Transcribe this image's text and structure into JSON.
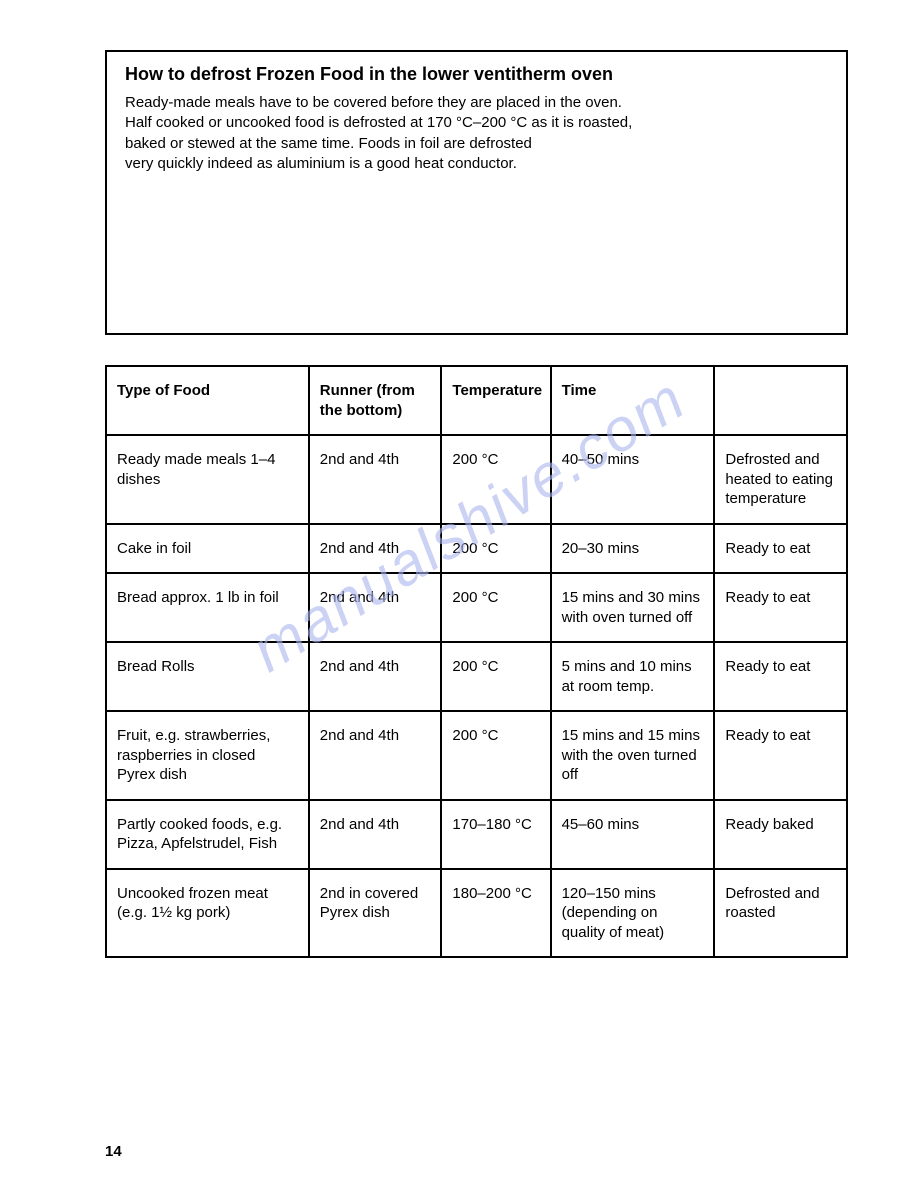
{
  "info_box": {
    "title": "How to defrost Frozen Food in the lower ventitherm oven",
    "line1": "Ready-made meals have to be covered before they are placed in the oven.",
    "line2": "Half cooked or uncooked food is defrosted at 170 °C–200 °C as it is roasted,",
    "line3": "baked or stewed at the same time. Foods in foil are defrosted",
    "line4": "very quickly indeed as aluminium is a good heat conductor."
  },
  "table": {
    "headers": {
      "col1": "Type of Food",
      "col2": "Runner (from the bottom)",
      "col3": "Temperature",
      "col4": "Time",
      "col5": ""
    },
    "rows": [
      {
        "food": "Ready made meals 1–4 dishes",
        "runner": "2nd and 4th",
        "temp": "200 °C",
        "time": "40–50 mins",
        "result": "Defrosted and heated to eating temperature"
      },
      {
        "food": "Cake in foil",
        "runner": "2nd and 4th",
        "temp": "200 °C",
        "time": "20–30 mins",
        "result": "Ready to eat"
      },
      {
        "food": "Bread approx. 1 lb in foil",
        "runner": "2nd and 4th",
        "temp": "200 °C",
        "time": "15 mins and 30 mins with oven turned off",
        "result": "Ready to eat"
      },
      {
        "food": "Bread Rolls",
        "runner": "2nd and 4th",
        "temp": "200 °C",
        "time": "5 mins and 10 mins at room temp.",
        "result": "Ready to eat"
      },
      {
        "food": "Fruit, e.g. strawberries, raspberries in closed Pyrex dish",
        "runner": "2nd and 4th",
        "temp": "200 °C",
        "time": "15 mins and 15 mins with the oven turned off",
        "result": "Ready to eat"
      },
      {
        "food": "Partly cooked foods, e.g. Pizza, Apfelstrudel, Fish",
        "runner": "2nd and 4th",
        "temp": "170–180 °C",
        "time": "45–60 mins",
        "result": "Ready baked"
      },
      {
        "food": "Uncooked frozen meat (e.g. 1½ kg pork)",
        "runner": "2nd in covered Pyrex dish",
        "temp": "180–200 °C",
        "time": "120–150 mins (depending on quality of meat)",
        "result": "Defrosted and roasted"
      }
    ]
  },
  "page_number": "14",
  "watermark": "manualshive.com"
}
